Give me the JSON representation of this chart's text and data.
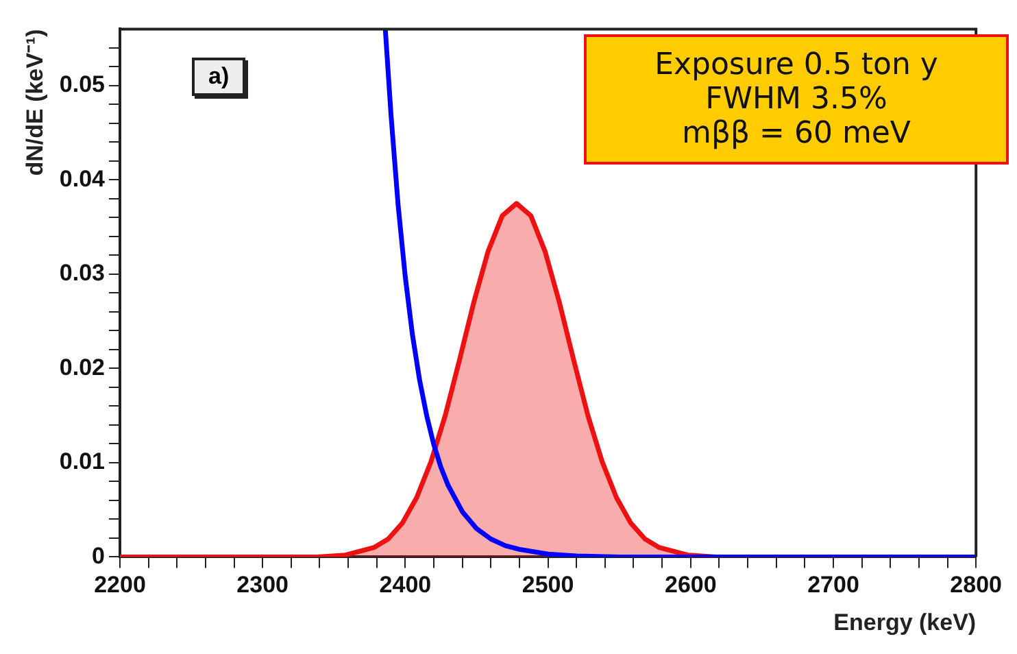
{
  "chart_data": {
    "type": "line",
    "xlabel": "Energy (keV)",
    "ylabel": "dN/dE (keV⁻¹)",
    "annotations": [
      "a)",
      "Exposure 0.5 ton y\nFWHM 3.5%\nmββ = 60 meV"
    ],
    "xlim": [
      2200,
      2800
    ],
    "xticks": [
      2200,
      {
        "value": 2220,
        "label": null
      },
      {
        "value": 2240,
        "label": null
      },
      {
        "value": 2260,
        "label": null
      },
      {
        "value": 2280,
        "label": null
      },
      2300,
      {
        "value": 2320,
        "label": null
      },
      {
        "value": 2340,
        "label": null
      },
      {
        "value": 2360,
        "label": null
      },
      {
        "value": 2380,
        "label": null
      },
      2400,
      {
        "value": 2420,
        "label": null
      },
      {
        "value": 2440,
        "label": null
      },
      {
        "value": 2460,
        "label": null
      },
      {
        "value": 2480,
        "label": null
      },
      2500,
      {
        "value": 2520,
        "label": null
      },
      {
        "value": 2540,
        "label": null
      },
      {
        "value": 2560,
        "label": null
      },
      {
        "value": 2580,
        "label": null
      },
      2600,
      {
        "value": 2620,
        "label": null
      },
      {
        "value": 2640,
        "label": null
      },
      {
        "value": 2660,
        "label": null
      },
      {
        "value": 2680,
        "label": null
      },
      2700,
      {
        "value": 2720,
        "label": null
      },
      {
        "value": 2740,
        "label": null
      },
      {
        "value": 2760,
        "label": null
      },
      {
        "value": 2780,
        "label": null
      },
      2800
    ],
    "ylim": [
      0,
      0.056
    ],
    "yticks": [
      0,
      {
        "value": 0.002,
        "label": null
      },
      {
        "value": 0.004,
        "label": null
      },
      {
        "value": 0.006,
        "label": null
      },
      {
        "value": 0.008,
        "label": null
      },
      0.01,
      {
        "value": 0.012,
        "label": null
      },
      {
        "value": 0.014,
        "label": null
      },
      {
        "value": 0.016,
        "label": null
      },
      {
        "value": 0.018,
        "label": null
      },
      0.02,
      {
        "value": 0.022,
        "label": null
      },
      {
        "value": 0.024,
        "label": null
      },
      {
        "value": 0.026,
        "label": null
      },
      {
        "value": 0.028,
        "label": null
      },
      0.03,
      {
        "value": 0.032,
        "label": null
      },
      {
        "value": 0.034,
        "label": null
      },
      {
        "value": 0.036,
        "label": null
      },
      {
        "value": 0.038,
        "label": null
      },
      0.04,
      {
        "value": 0.042,
        "label": null
      },
      {
        "value": 0.044,
        "label": null
      },
      {
        "value": 0.046,
        "label": null
      },
      {
        "value": 0.048,
        "label": null
      },
      0.05,
      {
        "value": 0.052,
        "label": null
      },
      {
        "value": 0.054,
        "label": null
      }
    ],
    "series": [
      {
        "type": "area",
        "color": "#ee1111",
        "x": [
          2200,
          2338,
          2358,
          2378,
          2388,
          2398,
          2408,
          2418,
          2428,
          2438,
          2448,
          2458,
          2468,
          2478,
          2488,
          2498,
          2508,
          2518,
          2528,
          2538,
          2548,
          2558,
          2568,
          2578,
          2598,
          2618,
          2800
        ],
        "values": [
          0,
          0,
          0.0002,
          0.001,
          0.0019,
          0.0036,
          0.0063,
          0.0101,
          0.015,
          0.0209,
          0.027,
          0.0324,
          0.0362,
          0.0375,
          0.0362,
          0.0324,
          0.027,
          0.0209,
          0.015,
          0.0101,
          0.0063,
          0.0036,
          0.0019,
          0.001,
          0.0002,
          0,
          0
        ]
      },
      {
        "type": "line",
        "color": "#0000ff",
        "x": [
          2386,
          2390,
          2395,
          2400,
          2405,
          2410,
          2415,
          2420,
          2425,
          2430,
          2440,
          2450,
          2460,
          2470,
          2480,
          2500,
          2520,
          2550,
          2800
        ],
        "values": [
          0.056,
          0.0469,
          0.0373,
          0.0297,
          0.0236,
          0.0188,
          0.015,
          0.0119,
          0.0095,
          0.0076,
          0.0048,
          0.003,
          0.0019,
          0.0012,
          0.0008,
          0.0003,
          0.0001,
          0,
          0
        ]
      }
    ]
  }
}
